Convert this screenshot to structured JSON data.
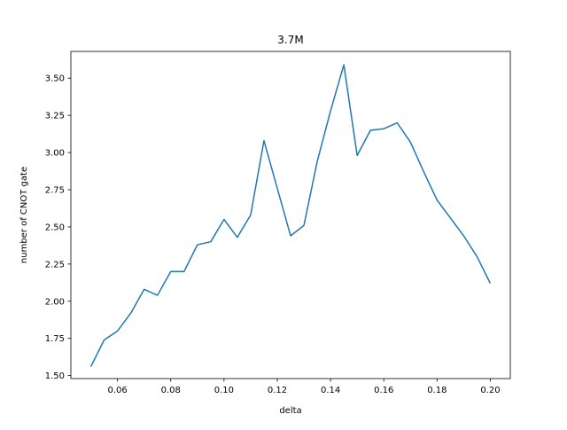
{
  "colors": {
    "line": "#1f77b4",
    "axes": "#000000",
    "background": "#ffffff"
  },
  "chart_data": {
    "type": "line",
    "title": "3.7M",
    "xlabel": "delta",
    "ylabel": "number of  CNOT gate",
    "xlim": [
      0.0425,
      0.2075
    ],
    "ylim": [
      1.48,
      3.68
    ],
    "grid": false,
    "x_ticks": [
      "0.06",
      "0.08",
      "0.10",
      "0.12",
      "0.14",
      "0.16",
      "0.18",
      "0.20"
    ],
    "x_tick_values": [
      0.06,
      0.08,
      0.1,
      0.12,
      0.14,
      0.16,
      0.18,
      0.2
    ],
    "y_ticks": [
      "1.50",
      "1.75",
      "2.00",
      "2.25",
      "2.50",
      "2.75",
      "3.00",
      "3.25",
      "3.50"
    ],
    "y_tick_values": [
      1.5,
      1.75,
      2.0,
      2.25,
      2.5,
      2.75,
      3.0,
      3.25,
      3.5
    ],
    "series": [
      {
        "x": [
          0.05,
          0.055,
          0.06,
          0.065,
          0.07,
          0.075,
          0.08,
          0.085,
          0.09,
          0.095,
          0.1,
          0.105,
          0.11,
          0.115,
          0.12,
          0.125,
          0.13,
          0.135,
          0.14,
          0.145,
          0.15,
          0.155,
          0.16,
          0.165,
          0.17,
          0.175,
          0.18,
          0.185,
          0.19,
          0.195,
          0.2
        ],
        "y": [
          1.56,
          1.74,
          1.8,
          1.92,
          2.08,
          2.04,
          2.2,
          2.2,
          2.38,
          2.4,
          2.55,
          2.43,
          2.58,
          3.08,
          2.76,
          2.44,
          2.51,
          2.94,
          3.28,
          3.59,
          2.98,
          3.15,
          3.16,
          3.2,
          3.07,
          2.87,
          2.68,
          2.56,
          2.44,
          2.3,
          2.12
        ]
      }
    ]
  }
}
